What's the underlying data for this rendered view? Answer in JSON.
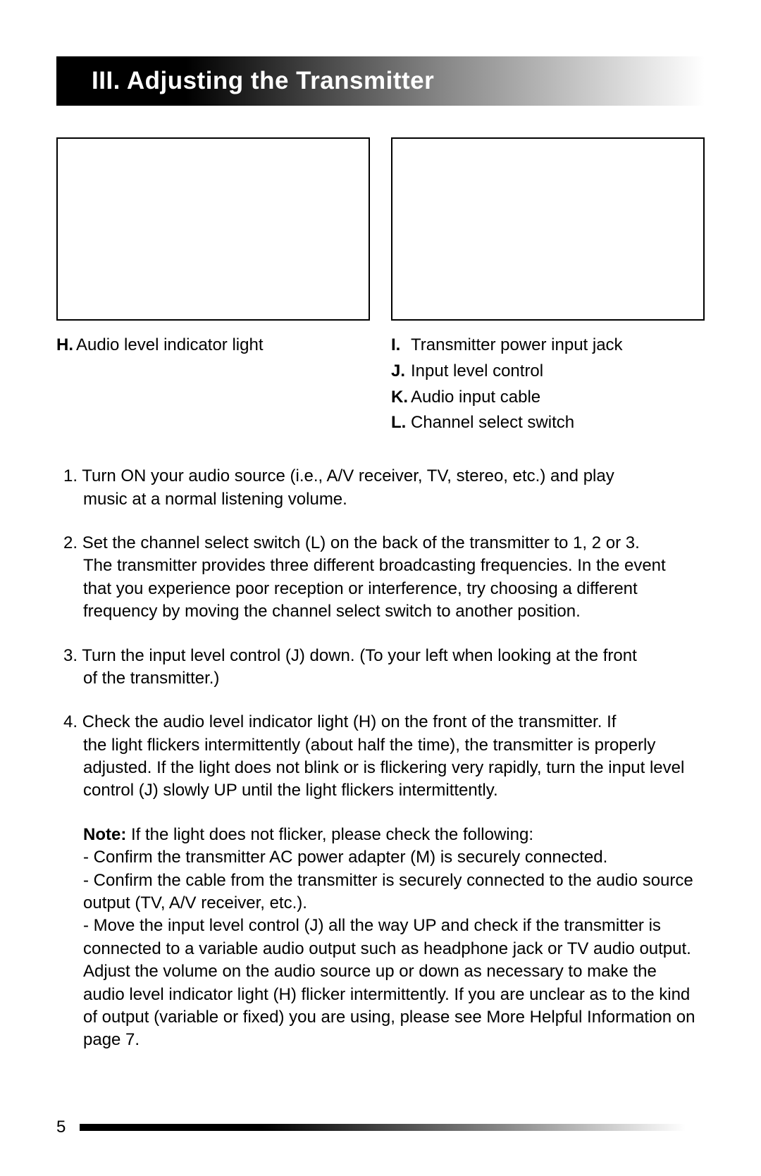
{
  "header": {
    "title": "III. Adjusting the Transmitter",
    "title_fontsize": 35,
    "title_color": "#ffffff",
    "bar_gradient_from": "#000000",
    "bar_gradient_to": "#ffffff"
  },
  "legend_left": [
    {
      "letter": "H.",
      "text": "Audio level indicator light"
    }
  ],
  "legend_right": [
    {
      "letter": "I.",
      "text": "Transmitter power input jack"
    },
    {
      "letter": "J.",
      "text": "Input level control"
    },
    {
      "letter": "K.",
      "text": "Audio input cable"
    },
    {
      "letter": "L.",
      "text": "Channel select switch"
    }
  ],
  "steps": [
    {
      "num": "1.",
      "first": "Turn ON your audio source (i.e., A/V receiver, TV, stereo, etc.) and play",
      "rest": "music at a normal listening volume."
    },
    {
      "num": "2.",
      "first": "Set the channel select switch (L) on the back of the transmitter to 1, 2 or 3.",
      "rest": "The transmitter provides three different broadcasting frequencies. In the event that you experience poor reception or interference, try choosing a different frequency by moving the channel select switch to another position."
    },
    {
      "num": "3.",
      "first": "Turn the input level control (J) down. (To your left when looking at the front",
      "rest": "of the transmitter.)"
    },
    {
      "num": "4.",
      "first": "Check the audio level indicator light (H) on the front of the transmitter. If",
      "rest": "the light flickers intermittently (about half the time), the transmitter is properly adjusted. If the light does not blink or is flickering very rapidly, turn the input level control (J) slowly UP until the light flickers intermittently."
    }
  ],
  "note": {
    "label": "Note:",
    "intro": "If the light does not flicker, please check the following:",
    "bullets": [
      "- Confirm the transmitter AC power adapter (M) is securely connected.",
      "- Confirm the cable from the transmitter is securely connected to the audio source output (TV, A/V receiver, etc.).",
      "- Move the input level control (J) all the way UP and check if the transmitter is connected to a variable audio output such as headphone jack or TV audio output. Adjust the volume on the audio source up or down as necessary to make the audio level indicator light (H) flicker intermittently. If you are unclear as to the kind of output (variable or fixed) you are using, please see More Helpful Information on page 7."
    ]
  },
  "page_number": "5",
  "colors": {
    "text": "#000000",
    "background": "#ffffff",
    "border": "#000000"
  },
  "typography": {
    "body_fontsize": 24,
    "body_line_height": 1.35,
    "font_family": "Arial, Helvetica, sans-serif"
  }
}
